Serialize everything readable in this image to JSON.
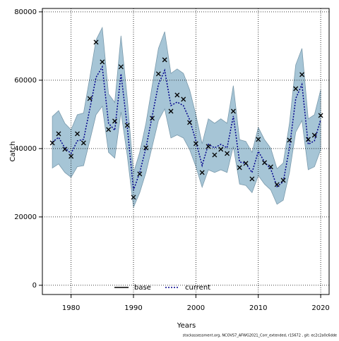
{
  "chart_data": {
    "type": "line",
    "x_label": "Years",
    "y_label": "Catch",
    "footer": "stockassessment.org, NCOVS7_AFWG2021_Corr_extended, r15672 , git: ec2c2a0c6dde",
    "x": [
      1977,
      1978,
      1979,
      1980,
      1981,
      1982,
      1983,
      1984,
      1985,
      1986,
      1987,
      1988,
      1989,
      1990,
      1991,
      1992,
      1993,
      1994,
      1995,
      1996,
      1997,
      1998,
      1999,
      2000,
      2001,
      2002,
      2003,
      2004,
      2005,
      2006,
      2007,
      2008,
      2009,
      2010,
      2011,
      2012,
      2013,
      2014,
      2015,
      2016,
      2017,
      2018,
      2019,
      2020
    ],
    "series": [
      {
        "name": "base",
        "color": "#000000",
        "dash": "solid"
      },
      {
        "name": "current",
        "color": "#00008b",
        "dash": "dotted",
        "values": [
          41860,
          43300,
          40210,
          38560,
          42270,
          42680,
          51550,
          60830,
          63920,
          47430,
          45360,
          61860,
          46400,
          27840,
          32990,
          40210,
          49490,
          58770,
          62890,
          52580,
          53610,
          52580,
          48460,
          42270,
          35050,
          41240,
          40210,
          41240,
          40210,
          49490,
          36090,
          35670,
          32990,
          39180,
          36090,
          34020,
          28870,
          30310,
          40210,
          54640,
          58770,
          41240,
          42270,
          48460
        ],
        "upper": [
          49400,
          51100,
          47400,
          45500,
          49900,
          50400,
          60800,
          71800,
          75400,
          56000,
          53500,
          73000,
          54800,
          32900,
          38900,
          47400,
          58400,
          69300,
          74200,
          62000,
          63300,
          62000,
          57200,
          49900,
          41400,
          48700,
          47400,
          48700,
          47400,
          58400,
          42600,
          42100,
          38900,
          46200,
          42600,
          40100,
          34100,
          35800,
          47400,
          64500,
          69300,
          48700,
          49900,
          57200
        ],
        "lower": [
          34300,
          35500,
          33000,
          31600,
          34700,
          35000,
          42300,
          49900,
          52400,
          38900,
          37200,
          50700,
          38000,
          22800,
          27100,
          33000,
          40600,
          48200,
          51600,
          43100,
          44000,
          43100,
          39700,
          34700,
          28700,
          33800,
          33000,
          33800,
          33000,
          40600,
          29600,
          29200,
          27100,
          32100,
          29600,
          27900,
          23700,
          24900,
          33000,
          44800,
          48200,
          33800,
          34700,
          39700
        ],
        "band_color": "#a6c5d6"
      }
    ],
    "observed": [
      41650,
      44330,
      39800,
      37730,
      44330,
      41650,
      54640,
      71130,
      65360,
      45570,
      48040,
      63920,
      46800,
      25770,
      32580,
      40210,
      48870,
      61860,
      65980,
      50930,
      55670,
      54430,
      47630,
      41440,
      32990,
      40620,
      38140,
      39790,
      38560,
      50930,
      34430,
      35670,
      31130,
      42680,
      35880,
      34640,
      29480,
      30720,
      42470,
      57520,
      61650,
      42680,
      43920,
      49690
    ],
    "xlim": [
      1975.4,
      2021.35
    ],
    "ylim": [
      -2700,
      81000
    ],
    "xticks": [
      1980,
      1990,
      2000,
      2010,
      2020
    ],
    "yticks": [
      0,
      20000,
      40000,
      60000,
      80000
    ],
    "grid": true,
    "legend": "bottom"
  }
}
